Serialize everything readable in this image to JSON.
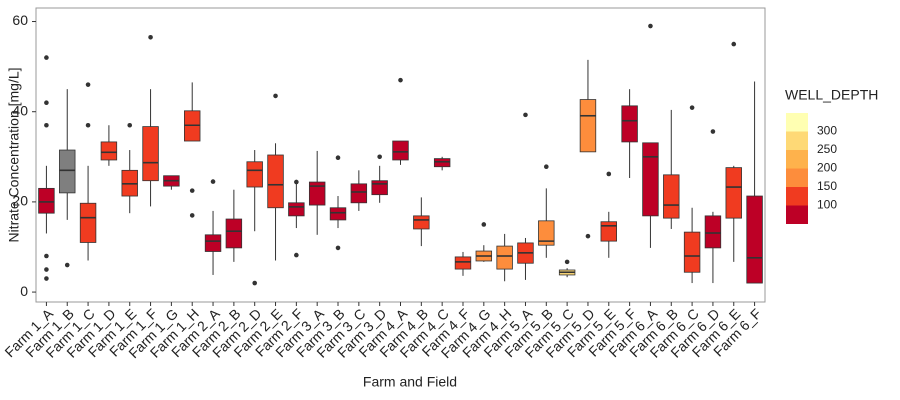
{
  "chart_data": {
    "type": "box",
    "x_label": "Farm and Field",
    "y_label": "Nitrate Concentration [mg/L]",
    "categories": [
      "Farm 1_A",
      "Farm 1_B",
      "Farm 1_C",
      "Farm 1_D",
      "Farm 1_E",
      "Farm 1_F",
      "Farm 1_G",
      "Farm 1_H",
      "Farm 2_A",
      "Farm 2_B",
      "Farm 2_D",
      "Farm 2_E",
      "Farm 2_F",
      "Farm 3_A",
      "Farm 3_B",
      "Farm 3_C",
      "Farm 3_D",
      "Farm 4_A",
      "Farm 4_B",
      "Farm 4_C",
      "Farm 4_F",
      "Farm 4_G",
      "Farm 4_H",
      "Farm 5_A",
      "Farm 5_B",
      "Farm 5_C",
      "Farm 5_D",
      "Farm 5_E",
      "Farm 5_F",
      "Farm 6_A",
      "Farm 6_B",
      "Farm 6_C",
      "Farm 6_D",
      "Farm 6_E",
      "Farm 6_F"
    ],
    "min": [
      13,
      16,
      7,
      28,
      17.5,
      19,
      22.7,
      33.5,
      3.8,
      6.7,
      13.5,
      7,
      14.2,
      12.7,
      14.2,
      18,
      19.8,
      28.2,
      10.2,
      27,
      3.6,
      6.7,
      2.4,
      2.7,
      7.6,
      3.3,
      31.1,
      7.6,
      25.3,
      9.8,
      14,
      2,
      2,
      6.7,
      2
    ],
    "q1": [
      17.5,
      22,
      11,
      29.3,
      21.3,
      24.7,
      23.5,
      33.5,
      9,
      9.8,
      23.3,
      18.7,
      16.9,
      19.3,
      16,
      19.8,
      21.6,
      29.3,
      14,
      27.8,
      5.1,
      6.9,
      5.1,
      6.4,
      10.4,
      3.8,
      31.1,
      11.3,
      33.3,
      16.9,
      16.4,
      4.4,
      9.8,
      16.4,
      2
    ],
    "median": [
      20,
      27,
      16.5,
      31,
      24,
      28.7,
      24.7,
      37,
      11.3,
      13.5,
      27,
      23.8,
      18.9,
      23.5,
      17.6,
      22.2,
      24,
      31.1,
      16,
      28.9,
      6.7,
      8,
      8,
      8.7,
      11.3,
      4.4,
      39.1,
      14.7,
      38,
      30,
      19.3,
      8,
      13.1,
      23.3,
      7.6
    ],
    "q3": [
      23,
      31.5,
      19.7,
      33.3,
      27,
      36.7,
      25.8,
      40.2,
      12.7,
      16.2,
      28.9,
      30.4,
      19.8,
      24.4,
      18.7,
      24,
      24.7,
      33.5,
      16.9,
      29.6,
      7.8,
      9.1,
      10.2,
      10.9,
      15.8,
      4.9,
      42.7,
      15.6,
      41.3,
      33.1,
      26,
      13.3,
      16.9,
      27.6,
      21.3
    ],
    "max": [
      28,
      45,
      28,
      37,
      31.5,
      45,
      25.8,
      46.5,
      18,
      22.7,
      31.5,
      33,
      24.9,
      31.3,
      21.3,
      27,
      28,
      33.5,
      21,
      30,
      8.9,
      10.4,
      12.9,
      12,
      23,
      5.3,
      51.5,
      17.8,
      45,
      33.1,
      40.4,
      18.7,
      17.8,
      28,
      46.7
    ],
    "outliers": [
      [
        52,
        42,
        37,
        8,
        5,
        3
      ],
      [
        6
      ],
      [
        46,
        37
      ],
      [],
      [
        37
      ],
      [
        56.5
      ],
      [],
      [
        22.5,
        17
      ],
      [
        24.5
      ],
      [],
      [
        2
      ],
      [
        43.5
      ],
      [
        24.4,
        8.2
      ],
      [],
      [
        29.8,
        9.8
      ],
      [],
      [
        30
      ],
      [
        47
      ],
      [],
      [],
      [],
      [
        15
      ],
      [],
      [
        39.3
      ],
      [
        27.8
      ],
      [
        6.7
      ],
      [
        12.4
      ],
      [
        26.2
      ],
      [],
      [
        59
      ],
      [],
      [
        40.9
      ],
      [
        35.6
      ],
      [
        55
      ],
      []
    ],
    "colors": [
      "#bd0026",
      "#7f7f7f",
      "#f03b20",
      "#f03b20",
      "#f03b20",
      "#f03b20",
      "#bd0026",
      "#f03b20",
      "#bd0026",
      "#bd0026",
      "#f03b20",
      "#f03b20",
      "#bd0026",
      "#bd0026",
      "#bd0026",
      "#bd0026",
      "#bd0026",
      "#bd0026",
      "#f03b20",
      "#bd0026",
      "#f03b20",
      "#fd8d3c",
      "#fd8d3c",
      "#f03b20",
      "#fd8d3c",
      "#fed976",
      "#fd8d3c",
      "#f03b20",
      "#bd0026",
      "#bd0026",
      "#f03b20",
      "#f03b20",
      "#bd0026",
      "#f03b20",
      "#bd0026"
    ],
    "ylim": [
      -2.2,
      63
    ],
    "yticks": [
      0,
      20,
      40,
      60
    ],
    "legend": {
      "title": "WELL_DEPTH",
      "colors": [
        "#ffffb2",
        "#fed976",
        "#feb24c",
        "#fd8d3c",
        "#f03b20",
        "#bd0026"
      ],
      "labels": [
        300,
        250,
        200,
        150,
        100
      ]
    }
  }
}
